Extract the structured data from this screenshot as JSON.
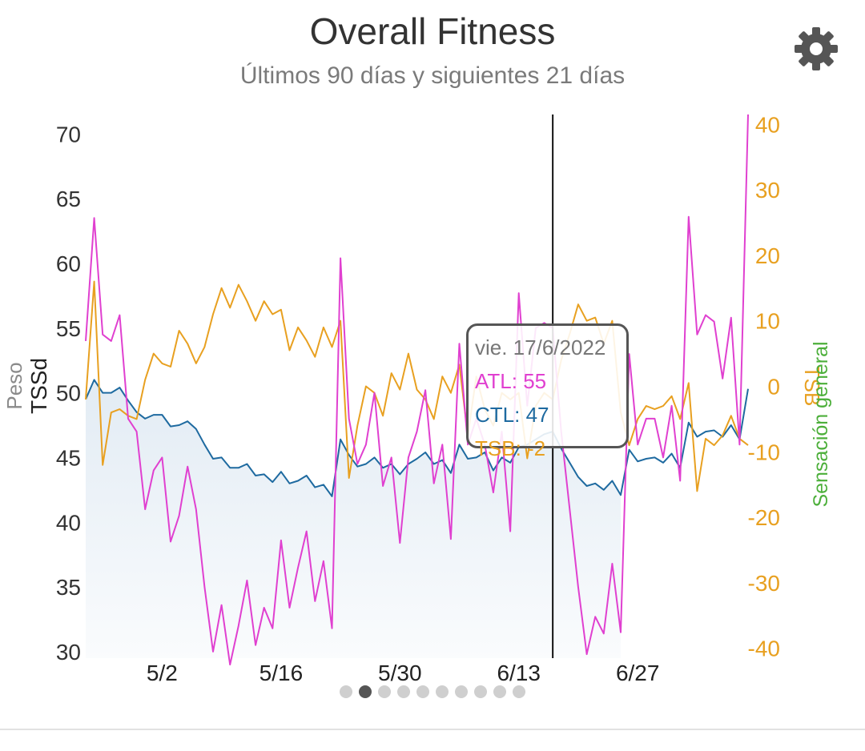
{
  "header": {
    "title": "Overall Fitness",
    "subtitle": "Últimos 90 días y siguientes 21 días",
    "settings_icon": "gear-icon"
  },
  "tooltip": {
    "date": "vie. 17/6/2022",
    "atl": "ATL: 55",
    "ctl": "CTL: 47",
    "tsb": "TSB: -2"
  },
  "pager": {
    "count": 10,
    "active": 1
  },
  "colors": {
    "atl": "#e040d0",
    "ctl": "#1e6aa0",
    "tsb": "#e8a020",
    "ctl_fill": "#dde8f2",
    "sensacion": "#4caf3a"
  },
  "chart_data": {
    "type": "line",
    "x_type": "date",
    "x_tick_labels": [
      "5/2",
      "5/16",
      "5/30",
      "6/13",
      "6/27"
    ],
    "x_ticks": [
      "2022-05-02",
      "2022-05-16",
      "2022-05-30",
      "2022-06-13",
      "2022-06-27"
    ],
    "xlim": [
      "2022-04-23",
      "2022-07-10"
    ],
    "y_left": {
      "labels": [
        "Peso",
        "TSSd"
      ],
      "ticks": [
        30,
        35,
        40,
        45,
        50,
        55,
        60,
        65,
        70
      ],
      "ylim": [
        29.5,
        71.5
      ]
    },
    "y_right": {
      "labels": [
        "TSB",
        "Sensación general"
      ],
      "ticks": [
        40,
        30,
        20,
        10,
        0,
        -10,
        -20,
        -30,
        -40
      ],
      "ylim": [
        -41.5,
        41.5
      ]
    },
    "marker_date": "2022-06-17",
    "series": [
      {
        "name": "ATL",
        "axis": "left",
        "points": [
          [
            "2022-04-23",
            54
          ],
          [
            "2022-04-24",
            63.5
          ],
          [
            "2022-04-25",
            54.5
          ],
          [
            "2022-04-26",
            54
          ],
          [
            "2022-04-27",
            56
          ],
          [
            "2022-04-28",
            48
          ],
          [
            "2022-04-29",
            47
          ],
          [
            "2022-04-30",
            41
          ],
          [
            "2022-05-01",
            44
          ],
          [
            "2022-05-02",
            45
          ],
          [
            "2022-05-03",
            38.5
          ],
          [
            "2022-05-04",
            40.5
          ],
          [
            "2022-05-05",
            44.3
          ],
          [
            "2022-05-06",
            41
          ],
          [
            "2022-05-07",
            35
          ],
          [
            "2022-05-08",
            30
          ],
          [
            "2022-05-09",
            33.6
          ],
          [
            "2022-05-10",
            29
          ],
          [
            "2022-05-11",
            32
          ],
          [
            "2022-05-12",
            35.5
          ],
          [
            "2022-05-13",
            30.5
          ],
          [
            "2022-05-14",
            33.4
          ],
          [
            "2022-05-15",
            31.8
          ],
          [
            "2022-05-16",
            38.6
          ],
          [
            "2022-05-17",
            33.4
          ],
          [
            "2022-05-18",
            36.5
          ],
          [
            "2022-05-19",
            39.3
          ],
          [
            "2022-05-20",
            33.9
          ],
          [
            "2022-05-21",
            37
          ],
          [
            "2022-05-22",
            31.8
          ],
          [
            "2022-05-23",
            60.4
          ],
          [
            "2022-05-24",
            48
          ],
          [
            "2022-05-25",
            44.5
          ],
          [
            "2022-05-26",
            46
          ],
          [
            "2022-05-27",
            50
          ],
          [
            "2022-05-28",
            42.8
          ],
          [
            "2022-05-29",
            45
          ],
          [
            "2022-05-30",
            38.4
          ],
          [
            "2022-05-31",
            45
          ],
          [
            "2022-06-01",
            47
          ],
          [
            "2022-06-02",
            50.2
          ],
          [
            "2022-06-03",
            43
          ],
          [
            "2022-06-04",
            46
          ],
          [
            "2022-06-05",
            38.7
          ],
          [
            "2022-06-06",
            53.8
          ],
          [
            "2022-06-07",
            46
          ],
          [
            "2022-06-08",
            48
          ],
          [
            "2022-06-09",
            46
          ],
          [
            "2022-06-10",
            42.3
          ],
          [
            "2022-06-11",
            47
          ],
          [
            "2022-06-12",
            39.3
          ],
          [
            "2022-06-13",
            57.7
          ],
          [
            "2022-06-14",
            49
          ],
          [
            "2022-06-15",
            55
          ],
          [
            "2022-06-16",
            55.4
          ],
          [
            "2022-06-17",
            55
          ],
          [
            "2022-06-18",
            47
          ],
          [
            "2022-06-19",
            41
          ],
          [
            "2022-06-20",
            35
          ],
          [
            "2022-06-21",
            29.8
          ],
          [
            "2022-06-22",
            32.7
          ],
          [
            "2022-06-23",
            31.4
          ],
          [
            "2022-06-24",
            36.8
          ],
          [
            "2022-06-25",
            31.5
          ],
          [
            "2022-06-26",
            53
          ],
          [
            "2022-06-27",
            46
          ],
          [
            "2022-06-28",
            48
          ],
          [
            "2022-06-29",
            48
          ],
          [
            "2022-06-30",
            45
          ],
          [
            "2022-07-01",
            49
          ],
          [
            "2022-07-02",
            43.2
          ],
          [
            "2022-07-03",
            63.6
          ],
          [
            "2022-07-04",
            54.5
          ],
          [
            "2022-07-05",
            56
          ],
          [
            "2022-07-06",
            55.5
          ],
          [
            "2022-07-07",
            51.1
          ],
          [
            "2022-07-08",
            55.8
          ],
          [
            "2022-07-09",
            46
          ],
          [
            "2022-07-10",
            71.5
          ]
        ]
      },
      {
        "name": "CTL",
        "axis": "left",
        "points": [
          [
            "2022-04-23",
            49.5
          ],
          [
            "2022-04-24",
            51
          ],
          [
            "2022-04-25",
            50
          ],
          [
            "2022-04-26",
            50
          ],
          [
            "2022-04-27",
            50.4
          ],
          [
            "2022-04-28",
            49.4
          ],
          [
            "2022-04-29",
            48.5
          ],
          [
            "2022-04-30",
            48
          ],
          [
            "2022-05-01",
            48.3
          ],
          [
            "2022-05-02",
            48.3
          ],
          [
            "2022-05-03",
            47.4
          ],
          [
            "2022-05-04",
            47.5
          ],
          [
            "2022-05-05",
            47.8
          ],
          [
            "2022-05-06",
            47.2
          ],
          [
            "2022-05-07",
            46
          ],
          [
            "2022-05-08",
            44.9
          ],
          [
            "2022-05-09",
            45
          ],
          [
            "2022-05-10",
            44.2
          ],
          [
            "2022-05-11",
            44.2
          ],
          [
            "2022-05-12",
            44.5
          ],
          [
            "2022-05-13",
            43.6
          ],
          [
            "2022-05-14",
            43.7
          ],
          [
            "2022-05-15",
            43.1
          ],
          [
            "2022-05-16",
            43.9
          ],
          [
            "2022-05-17",
            43
          ],
          [
            "2022-05-18",
            43.2
          ],
          [
            "2022-05-19",
            43.6
          ],
          [
            "2022-05-20",
            42.7
          ],
          [
            "2022-05-21",
            42.9
          ],
          [
            "2022-05-22",
            42
          ],
          [
            "2022-05-23",
            46.4
          ],
          [
            "2022-05-24",
            45.2
          ],
          [
            "2022-05-25",
            44.3
          ],
          [
            "2022-05-26",
            44.5
          ],
          [
            "2022-05-27",
            45
          ],
          [
            "2022-05-28",
            44.2
          ],
          [
            "2022-05-29",
            44.5
          ],
          [
            "2022-05-30",
            43.7
          ],
          [
            "2022-05-31",
            44.5
          ],
          [
            "2022-06-01",
            44.9
          ],
          [
            "2022-06-02",
            45.4
          ],
          [
            "2022-06-03",
            44.5
          ],
          [
            "2022-06-04",
            44.8
          ],
          [
            "2022-06-05",
            43.8
          ],
          [
            "2022-06-06",
            46
          ],
          [
            "2022-06-07",
            44.9
          ],
          [
            "2022-06-08",
            45
          ],
          [
            "2022-06-09",
            45.4
          ],
          [
            "2022-06-10",
            44
          ],
          [
            "2022-06-11",
            45
          ],
          [
            "2022-06-12",
            44.6
          ],
          [
            "2022-06-13",
            45.8
          ],
          [
            "2022-06-14",
            46
          ],
          [
            "2022-06-15",
            46.4
          ],
          [
            "2022-06-16",
            46.8
          ],
          [
            "2022-06-17",
            47
          ],
          [
            "2022-06-18",
            45.7
          ],
          [
            "2022-06-19",
            44.6
          ],
          [
            "2022-06-20",
            43.5
          ],
          [
            "2022-06-21",
            42.8
          ],
          [
            "2022-06-22",
            43
          ],
          [
            "2022-06-23",
            42.5
          ],
          [
            "2022-06-24",
            43.2
          ],
          [
            "2022-06-25",
            42.1
          ],
          [
            "2022-06-26",
            45.6
          ],
          [
            "2022-06-27",
            44.7
          ],
          [
            "2022-06-28",
            44.9
          ],
          [
            "2022-06-29",
            45
          ],
          [
            "2022-06-30",
            44.6
          ],
          [
            "2022-07-01",
            45.3
          ],
          [
            "2022-07-02",
            44.2
          ],
          [
            "2022-07-03",
            47.7
          ],
          [
            "2022-07-04",
            46.6
          ],
          [
            "2022-07-05",
            47
          ],
          [
            "2022-07-06",
            47.1
          ],
          [
            "2022-07-07",
            46.6
          ],
          [
            "2022-07-08",
            47.5
          ],
          [
            "2022-07-09",
            46.4
          ],
          [
            "2022-07-10",
            50.3
          ]
        ]
      },
      {
        "name": "TSB",
        "axis": "right",
        "points": [
          [
            "2022-04-23",
            -2
          ],
          [
            "2022-04-24",
            16
          ],
          [
            "2022-04-25",
            -12
          ],
          [
            "2022-04-26",
            -4
          ],
          [
            "2022-04-27",
            -3.5
          ],
          [
            "2022-04-28",
            -4.5
          ],
          [
            "2022-04-29",
            -5
          ],
          [
            "2022-04-30",
            1
          ],
          [
            "2022-05-01",
            5
          ],
          [
            "2022-05-02",
            3.5
          ],
          [
            "2022-05-03",
            3
          ],
          [
            "2022-05-04",
            8.5
          ],
          [
            "2022-05-05",
            6.5
          ],
          [
            "2022-05-06",
            3.5
          ],
          [
            "2022-05-07",
            6
          ],
          [
            "2022-05-08",
            11
          ],
          [
            "2022-05-09",
            15
          ],
          [
            "2022-05-10",
            12
          ],
          [
            "2022-05-11",
            15.5
          ],
          [
            "2022-05-12",
            13
          ],
          [
            "2022-05-13",
            10
          ],
          [
            "2022-05-14",
            13
          ],
          [
            "2022-05-15",
            11
          ],
          [
            "2022-05-16",
            11.7
          ],
          [
            "2022-05-17",
            5.5
          ],
          [
            "2022-05-18",
            9
          ],
          [
            "2022-05-19",
            7
          ],
          [
            "2022-05-20",
            4.5
          ],
          [
            "2022-05-21",
            9
          ],
          [
            "2022-05-22",
            6
          ],
          [
            "2022-05-23",
            10
          ],
          [
            "2022-05-24",
            -14
          ],
          [
            "2022-05-25",
            -6
          ],
          [
            "2022-05-26",
            0
          ],
          [
            "2022-05-27",
            -1
          ],
          [
            "2022-05-28",
            -4.5
          ],
          [
            "2022-05-29",
            2
          ],
          [
            "2022-05-30",
            -0.5
          ],
          [
            "2022-05-31",
            5
          ],
          [
            "2022-06-01",
            -0.5
          ],
          [
            "2022-06-02",
            -2
          ],
          [
            "2022-06-03",
            -5
          ],
          [
            "2022-06-04",
            1.5
          ],
          [
            "2022-06-05",
            -1
          ],
          [
            "2022-06-06",
            3.3
          ],
          [
            "2022-06-07",
            -7.5
          ],
          [
            "2022-06-08",
            1.5
          ],
          [
            "2022-06-09",
            -3.5
          ],
          [
            "2022-06-10",
            -6
          ],
          [
            "2022-06-11",
            -1
          ],
          [
            "2022-06-12",
            -2
          ],
          [
            "2022-06-13",
            -1
          ],
          [
            "2022-06-14",
            -11
          ],
          [
            "2022-06-15",
            -3
          ],
          [
            "2022-06-16",
            -1
          ],
          [
            "2022-06-17",
            -2
          ],
          [
            "2022-06-18",
            4
          ],
          [
            "2022-06-19",
            8
          ],
          [
            "2022-06-20",
            12.5
          ],
          [
            "2022-06-21",
            10
          ],
          [
            "2022-06-22",
            10.5
          ],
          [
            "2022-06-23",
            6.5
          ],
          [
            "2022-06-24",
            10
          ],
          [
            "2022-06-25",
            -4
          ],
          [
            "2022-06-26",
            -9
          ],
          [
            "2022-06-27",
            -5
          ],
          [
            "2022-06-28",
            -3
          ],
          [
            "2022-06-29",
            -3.5
          ],
          [
            "2022-06-30",
            -3
          ],
          [
            "2022-07-01",
            -1.5
          ],
          [
            "2022-07-02",
            -5
          ],
          [
            "2022-07-03",
            0.5
          ],
          [
            "2022-07-04",
            -16
          ],
          [
            "2022-07-05",
            -8
          ],
          [
            "2022-07-06",
            -9
          ],
          [
            "2022-07-07",
            -7.5
          ],
          [
            "2022-07-08",
            -4.5
          ],
          [
            "2022-07-09",
            -8
          ],
          [
            "2022-07-10",
            -9
          ]
        ]
      }
    ]
  }
}
